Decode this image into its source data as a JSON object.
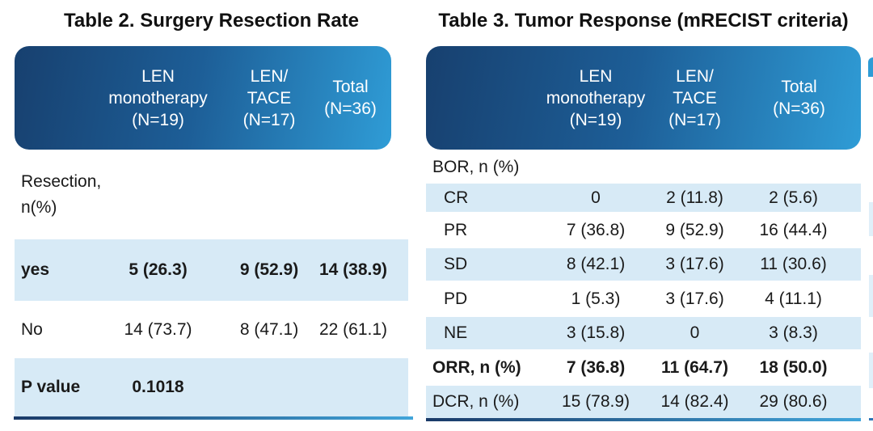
{
  "colors": {
    "header_gradient_start": "#17406F",
    "header_gradient_end": "#2F9CD6",
    "row_stripe": "#D7EAF6",
    "bottom_rule_start": "#1A3A68",
    "bottom_rule_end": "#41A5DA",
    "title_text": "#111111",
    "header_text": "#FFFFFF",
    "body_text": "#1A1A1A"
  },
  "table2": {
    "title": "Table 2. Surgery Resection Rate",
    "columns": [
      {
        "lines": [
          "LEN",
          "monotherapy",
          "(N=19)"
        ]
      },
      {
        "lines": [
          "LEN/",
          "TACE",
          "(N=17)"
        ]
      },
      {
        "lines": [
          "Total",
          "(N=36)"
        ]
      }
    ],
    "rows": [
      {
        "label": "Resection,\nn(%)",
        "values": [
          "",
          "",
          ""
        ]
      },
      {
        "label": "yes",
        "values": [
          "5 (26.3)",
          "9 (52.9)",
          "14 (38.9)"
        ]
      },
      {
        "label": "No",
        "values": [
          "14 (73.7)",
          "8 (47.1)",
          "22 (61.1)"
        ]
      },
      {
        "label": "P value",
        "values": [
          "0.1018",
          "",
          ""
        ]
      }
    ]
  },
  "table3": {
    "title": "Table 3. Tumor Response (mRECIST criteria)",
    "columns": [
      {
        "lines": [
          "LEN",
          "monotherapy",
          "(N=19)"
        ]
      },
      {
        "lines": [
          "LEN/",
          "TACE",
          "(N=17)"
        ]
      },
      {
        "lines": [
          "Total",
          "(N=36)"
        ]
      }
    ],
    "rows": [
      {
        "label": "BOR, n (%)",
        "values": [
          "",
          "",
          ""
        ]
      },
      {
        "label": "CR",
        "values": [
          "0",
          "2 (11.8)",
          "2 (5.6)"
        ]
      },
      {
        "label": "PR",
        "values": [
          "7 (36.8)",
          "9 (52.9)",
          "16 (44.4)"
        ]
      },
      {
        "label": "SD",
        "values": [
          "8 (42.1)",
          "3 (17.6)",
          "11 (30.6)"
        ]
      },
      {
        "label": "PD",
        "values": [
          "1 (5.3)",
          "3 (17.6)",
          "4 (11.1)"
        ]
      },
      {
        "label": "NE",
        "values": [
          "3 (15.8)",
          "0",
          "3 (8.3)"
        ]
      },
      {
        "label": "ORR, n (%)",
        "values": [
          "7 (36.8)",
          "11 (64.7)",
          "18 (50.0)"
        ]
      },
      {
        "label": "DCR, n (%)",
        "values": [
          "15 (78.9)",
          "14 (82.4)",
          "29 (80.6)"
        ]
      }
    ]
  }
}
